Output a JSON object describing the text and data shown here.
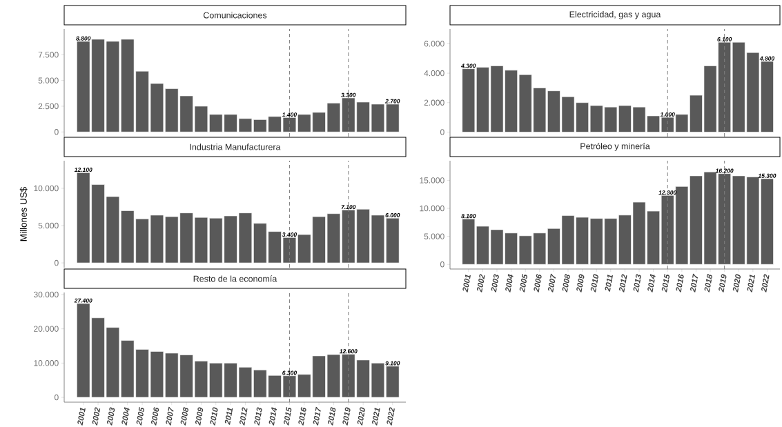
{
  "chart_data": [
    {
      "type": "bar",
      "title": "Comunicaciones",
      "categories": [
        "2001",
        "2002",
        "2003",
        "2004",
        "2005",
        "2006",
        "2007",
        "2008",
        "2009",
        "2010",
        "2011",
        "2012",
        "2013",
        "2014",
        "2015",
        "2016",
        "2017",
        "2018",
        "2019",
        "2020",
        "2021",
        "2022"
      ],
      "color": "#595959",
      "values": [
        8800,
        9000,
        8800,
        9000,
        5900,
        4700,
        4200,
        3500,
        2500,
        1700,
        1700,
        1300,
        1200,
        1500,
        1400,
        1700,
        1900,
        2800,
        3300,
        2900,
        2700,
        2700
      ],
      "value_labels": [
        "8.800",
        null,
        null,
        null,
        null,
        null,
        null,
        null,
        null,
        null,
        null,
        null,
        null,
        null,
        "1.400",
        null,
        null,
        null,
        "3.300",
        null,
        null,
        "2.700"
      ],
      "ylim": [
        -450,
        10000
      ],
      "yticks": [
        0,
        {
          "value": 2500,
          "label": "2.500"
        },
        {
          "value": 5000,
          "label": "5.000"
        },
        {
          "value": 7500,
          "label": "7.500"
        }
      ],
      "ref_lines": [
        {
          "axis": "x",
          "value": "2015",
          "color": "#7f7f7f",
          "line_style": "dashed"
        },
        {
          "axis": "x",
          "value": "2019",
          "color": "#7f7f7f",
          "line_style": "dashed"
        }
      ],
      "tick_labels": "y"
    },
    {
      "type": "bar",
      "title": "Electricidad, gas y agua",
      "categories": [
        "2001",
        "2002",
        "2003",
        "2004",
        "2005",
        "2006",
        "2007",
        "2008",
        "2009",
        "2010",
        "2011",
        "2012",
        "2013",
        "2014",
        "2015",
        "2016",
        "2017",
        "2018",
        "2019",
        "2020",
        "2021",
        "2022"
      ],
      "color": "#595959",
      "values": [
        4300,
        4400,
        4500,
        4200,
        3900,
        3000,
        2800,
        2400,
        2000,
        1800,
        1700,
        1800,
        1700,
        1100,
        1000,
        1200,
        2500,
        4500,
        6100,
        6100,
        5400,
        4800
      ],
      "value_labels": [
        "4.300",
        null,
        null,
        null,
        null,
        null,
        null,
        null,
        null,
        null,
        null,
        null,
        null,
        null,
        "1.000",
        null,
        null,
        null,
        "6.100",
        null,
        null,
        "4.800"
      ],
      "ylim": [
        -305,
        7000
      ],
      "yticks": [
        0,
        {
          "value": 2000,
          "label": "2.000"
        },
        {
          "value": 4000,
          "label": "4.000"
        },
        {
          "value": 6000,
          "label": "6.000"
        }
      ],
      "ref_lines": [
        {
          "axis": "x",
          "value": "2015",
          "color": "#7f7f7f",
          "line_style": "dashed"
        },
        {
          "axis": "x",
          "value": "2019",
          "color": "#7f7f7f",
          "line_style": "dashed"
        }
      ],
      "tick_labels": "y"
    },
    {
      "type": "bar",
      "title": "Industria Manufacturera",
      "ylabel": "Millones US$",
      "categories": [
        "2001",
        "2002",
        "2003",
        "2004",
        "2005",
        "2006",
        "2007",
        "2008",
        "2009",
        "2010",
        "2011",
        "2012",
        "2013",
        "2014",
        "2015",
        "2016",
        "2017",
        "2018",
        "2019",
        "2020",
        "2021",
        "2022"
      ],
      "color": "#595959",
      "values": [
        12100,
        10500,
        8900,
        7000,
        5900,
        6400,
        6200,
        6700,
        6100,
        6000,
        6300,
        6700,
        5300,
        4200,
        3400,
        3800,
        6200,
        6600,
        7100,
        7200,
        6400,
        6000
      ],
      "value_labels": [
        "12.100",
        null,
        null,
        null,
        null,
        null,
        null,
        null,
        null,
        null,
        null,
        null,
        null,
        null,
        "3.400",
        null,
        null,
        null,
        "7.100",
        null,
        null,
        "6.000"
      ],
      "ylim": [
        -640,
        13700
      ],
      "yticks": [
        0,
        {
          "value": 5000,
          "label": "5.000"
        },
        {
          "value": 10000,
          "label": "10.000"
        }
      ],
      "ref_lines": [
        {
          "axis": "x",
          "value": "2015",
          "color": "#7f7f7f",
          "line_style": "dashed"
        },
        {
          "axis": "x",
          "value": "2019",
          "color": "#7f7f7f",
          "line_style": "dashed"
        }
      ],
      "tick_labels": "y"
    },
    {
      "type": "bar",
      "title": "Petróleo y minería",
      "categories": [
        "2001",
        "2002",
        "2003",
        "2004",
        "2005",
        "2006",
        "2007",
        "2008",
        "2009",
        "2010",
        "2011",
        "2012",
        "2013",
        "2014",
        "2015",
        "2016",
        "2017",
        "2018",
        "2019",
        "2020",
        "2021",
        "2022"
      ],
      "color": "#595959",
      "values": [
        8100,
        6800,
        6200,
        5600,
        5100,
        5600,
        6400,
        8700,
        8400,
        8200,
        8200,
        8800,
        11100,
        9500,
        12300,
        13900,
        15800,
        16500,
        16200,
        15800,
        15600,
        15300
      ],
      "value_labels": [
        "8.100",
        null,
        null,
        null,
        null,
        null,
        null,
        null,
        null,
        null,
        null,
        null,
        null,
        null,
        "12.300",
        null,
        null,
        null,
        "16.200",
        null,
        null,
        "15.300"
      ],
      "ylim": [
        -830,
        18500
      ],
      "yticks": [
        0,
        {
          "value": 5000,
          "label": "5.000"
        },
        {
          "value": 10000,
          "label": "10.000"
        },
        {
          "value": 15000,
          "label": "15.000"
        }
      ],
      "ref_lines": [
        {
          "axis": "x",
          "value": "2015",
          "color": "#7f7f7f",
          "line_style": "dashed"
        },
        {
          "axis": "x",
          "value": "2019",
          "color": "#7f7f7f",
          "line_style": "dashed"
        }
      ],
      "grid": false
    },
    {
      "type": "bar",
      "title": "Resto de la economía",
      "categories": [
        "2001",
        "2002",
        "2003",
        "2004",
        "2005",
        "2006",
        "2007",
        "2008",
        "2009",
        "2010",
        "2011",
        "2012",
        "2013",
        "2014",
        "2015",
        "2016",
        "2017",
        "2018",
        "2019",
        "2020",
        "2021",
        "2022"
      ],
      "color": "#595959",
      "values": [
        27400,
        23200,
        20400,
        16600,
        14000,
        13400,
        12900,
        12400,
        10600,
        10000,
        10000,
        8800,
        8000,
        6400,
        6300,
        6700,
        12100,
        12500,
        12600,
        10900,
        10000,
        9100
      ],
      "value_labels": [
        "27.400",
        null,
        null,
        null,
        null,
        null,
        null,
        null,
        null,
        null,
        null,
        null,
        null,
        null,
        "6.300",
        null,
        null,
        null,
        "12.600",
        null,
        null,
        "9.100"
      ],
      "ylim": [
        -1400,
        30600
      ],
      "yticks": [
        0,
        {
          "value": 10000,
          "label": "10.000"
        },
        {
          "value": 20000,
          "label": "20.000"
        },
        {
          "value": 30000,
          "label": "30.000"
        }
      ],
      "ref_lines": [
        {
          "axis": "x",
          "value": "2015",
          "color": "#7f7f7f",
          "line_style": "dashed"
        },
        {
          "axis": "x",
          "value": "2019",
          "color": "#7f7f7f",
          "line_style": "dashed"
        }
      ],
      "grid": false
    }
  ]
}
